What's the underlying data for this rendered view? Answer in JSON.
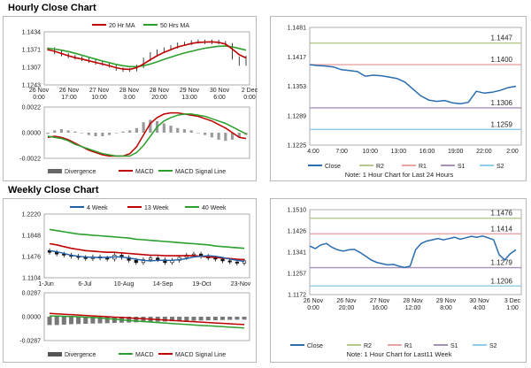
{
  "titles": {
    "hourly": "Hourly Close Chart",
    "weekly": "Weekly Close Chart"
  },
  "colors": {
    "ma_short": "#c00000",
    "ma_mid": "#c00000",
    "ma_long": "#2ca02c",
    "ma_4w": "#1f5fa8",
    "close_line": "#2a6db0",
    "macd": "#2ca02c",
    "signal": "#c00000",
    "divergence": "#777777",
    "r2": "#b5c98a",
    "r1": "#e8a3a3",
    "s1": "#a690b8",
    "s2": "#8fcdea"
  },
  "chart_data": [
    {
      "id": "hourly_price",
      "type": "line",
      "x_ticks": [
        "26 Nov\n0:00",
        "26 Nov\n17:00",
        "27 Nov\n10:00",
        "28 Nov\n3:00",
        "28 Nov\n20:00",
        "29 Nov\n13:00",
        "30 Nov\n6:00",
        "2 Dec\n0:00"
      ],
      "y_ticks": [
        "1.1434",
        "1.1371",
        "1.1307",
        "1.1243"
      ],
      "ylim": [
        1.1243,
        1.1434
      ],
      "legend": [
        "20 Hr MA",
        "50 Hrs MA"
      ],
      "close": [
        1.1372,
        1.136,
        1.1352,
        1.1345,
        1.134,
        1.1335,
        1.1328,
        1.1322,
        1.1318,
        1.1312,
        1.13,
        1.1296,
        1.1298,
        1.131,
        1.1335,
        1.1355,
        1.1365,
        1.1372,
        1.138,
        1.139,
        1.1392,
        1.1398,
        1.14,
        1.1396,
        1.14,
        1.1395,
        1.1388,
        1.134,
        1.1318,
        1.1342
      ],
      "series": [
        {
          "name": "20 Hr MA",
          "values": [
            1.137,
            1.1364,
            1.1356,
            1.1348,
            1.1341,
            1.1336,
            1.133,
            1.1324,
            1.1318,
            1.1312,
            1.1305,
            1.13,
            1.1299,
            1.1305,
            1.1318,
            1.1334,
            1.1348,
            1.136,
            1.137,
            1.138,
            1.1386,
            1.1392,
            1.1396,
            1.1397,
            1.1398,
            1.1396,
            1.139,
            1.1372,
            1.1352,
            1.134
          ]
        },
        {
          "name": "50 Hrs MA",
          "values": [
            1.1375,
            1.1372,
            1.1368,
            1.1363,
            1.1357,
            1.135,
            1.1343,
            1.1336,
            1.1329,
            1.1323,
            1.1317,
            1.1312,
            1.1309,
            1.1309,
            1.1312,
            1.1318,
            1.1326,
            1.1335,
            1.1343,
            1.1351,
            1.1358,
            1.1364,
            1.137,
            1.1375,
            1.1379,
            1.1382,
            1.1383,
            1.138,
            1.1374,
            1.1368
          ]
        }
      ]
    },
    {
      "id": "hourly_macd",
      "type": "bar",
      "y_ticks": [
        "0.0022",
        "0.0000",
        "-0.0022"
      ],
      "ylim": [
        -0.0022,
        0.0022
      ],
      "legend": [
        "Divergence",
        "MACD",
        "MACD Signal Line"
      ],
      "series": [
        {
          "name": "Divergence",
          "values": [
            -0.0001,
            0.0002,
            0.0003,
            0.0002,
            0.0001,
            0.0,
            -0.0002,
            -0.0003,
            -0.0003,
            -0.0002,
            0.0,
            0.0001,
            0.0002,
            0.0004,
            0.0009,
            0.0011,
            0.001,
            0.0008,
            0.0006,
            0.0004,
            0.0003,
            0.0002,
            0.0,
            -0.0002,
            -0.0004,
            -0.0006,
            -0.0007,
            -0.0006,
            -0.0004,
            -0.0002
          ]
        },
        {
          "name": "MACD",
          "values": [
            -0.0004,
            -0.0003,
            -0.0004,
            -0.0006,
            -0.0009,
            -0.0012,
            -0.0015,
            -0.0017,
            -0.0019,
            -0.002,
            -0.002,
            -0.002,
            -0.0018,
            -0.0012,
            -0.0002,
            0.0008,
            0.0013,
            0.0016,
            0.0017,
            0.0017,
            0.0016,
            0.0015,
            0.0014,
            0.0012,
            0.001,
            0.0007,
            0.0004,
            0.0,
            -0.0004,
            -0.0005
          ]
        },
        {
          "name": "MACD Signal Line",
          "values": [
            -0.0003,
            -0.0004,
            -0.0005,
            -0.0007,
            -0.001,
            -0.0012,
            -0.0014,
            -0.0016,
            -0.0018,
            -0.0019,
            -0.002,
            -0.002,
            -0.002,
            -0.0017,
            -0.0011,
            -0.0003,
            0.0005,
            0.001,
            0.0013,
            0.0015,
            0.0016,
            0.0016,
            0.0015,
            0.0014,
            0.0012,
            0.001,
            0.0008,
            0.0005,
            0.0002,
            -0.0001
          ]
        }
      ]
    },
    {
      "id": "hourly_pivot",
      "type": "line",
      "x_ticks": [
        "4:00",
        "7:00",
        "10:00",
        "13:00",
        "16:00",
        "19:00",
        "22:00",
        "2:00"
      ],
      "y_ticks": [
        "1.1481",
        "1.1417",
        "1.1353",
        "1.1289",
        "1.1225"
      ],
      "ylim": [
        1.1225,
        1.1481
      ],
      "levels": [
        {
          "name": "R2",
          "value": 1.1447,
          "label": "1.1447"
        },
        {
          "name": "R1",
          "value": 1.14,
          "label": "1.1400"
        },
        {
          "name": "S1",
          "value": 1.1306,
          "label": "1.1306"
        },
        {
          "name": "S2",
          "value": 1.1259,
          "label": "1.1259"
        }
      ],
      "close": [
        1.14,
        1.1398,
        1.1397,
        1.1395,
        1.1389,
        1.1387,
        1.1385,
        1.1375,
        1.1377,
        1.1376,
        1.1373,
        1.137,
        1.1362,
        1.1347,
        1.1332,
        1.1323,
        1.132,
        1.1322,
        1.1317,
        1.1315,
        1.1318,
        1.1342,
        1.1338,
        1.134,
        1.1344,
        1.135,
        1.1353
      ],
      "legend": [
        "Close",
        "R2",
        "R1",
        "S1",
        "S2"
      ],
      "note": "Note: 1 Hour Chart for Last 24 Hours"
    },
    {
      "id": "weekly_price",
      "type": "line",
      "x_ticks": [
        "1-Jun",
        "6-Jul",
        "10-Aug",
        "14-Sep",
        "19-Oct",
        "23-Nov"
      ],
      "y_ticks": [
        "1.2220",
        "1.1848",
        "1.1476",
        "1.1104"
      ],
      "ylim": [
        1.1104,
        1.222
      ],
      "legend": [
        "4 Week",
        "13 Week",
        "40 Week"
      ],
      "close": [
        1.155,
        1.152,
        1.15,
        1.148,
        1.146,
        1.144,
        1.147,
        1.145,
        1.143,
        1.15,
        1.146,
        1.141,
        1.137,
        1.142,
        1.145,
        1.142,
        1.137,
        1.141,
        1.146,
        1.15,
        1.152,
        1.148,
        1.145,
        1.143,
        1.14,
        1.138,
        1.136,
        1.14
      ],
      "series": [
        {
          "name": "4 Week",
          "values": [
            1.158,
            1.156,
            1.153,
            1.15,
            1.148,
            1.147,
            1.146,
            1.146,
            1.146,
            1.147,
            1.147,
            1.145,
            1.143,
            1.141,
            1.14,
            1.141,
            1.141,
            1.141,
            1.142,
            1.144,
            1.147,
            1.148,
            1.149,
            1.148,
            1.146,
            1.143,
            1.141,
            1.139
          ]
        },
        {
          "name": "13 Week",
          "values": [
            1.17,
            1.168,
            1.165,
            1.162,
            1.16,
            1.158,
            1.157,
            1.156,
            1.155,
            1.155,
            1.154,
            1.153,
            1.152,
            1.151,
            1.15,
            1.15,
            1.149,
            1.149,
            1.149,
            1.149,
            1.149,
            1.148,
            1.147,
            1.146,
            1.145,
            1.144,
            1.143,
            1.142
          ]
        },
        {
          "name": "40 Week",
          "values": [
            1.195,
            1.193,
            1.191,
            1.189,
            1.187,
            1.186,
            1.185,
            1.184,
            1.183,
            1.182,
            1.181,
            1.18,
            1.178,
            1.177,
            1.176,
            1.175,
            1.174,
            1.173,
            1.172,
            1.171,
            1.17,
            1.169,
            1.168,
            1.166,
            1.165,
            1.164,
            1.163,
            1.162
          ]
        }
      ]
    },
    {
      "id": "weekly_macd",
      "type": "bar",
      "y_ticks": [
        "0.0287",
        "0.0000",
        "-0.0287"
      ],
      "ylim": [
        -0.0287,
        0.0287
      ],
      "legend": [
        "Divergence",
        "MACD",
        "MACD Signal Line"
      ],
      "series": [
        {
          "name": "Divergence",
          "values": [
            -0.01,
            -0.01,
            -0.0095,
            -0.009,
            -0.0088,
            -0.0085,
            -0.0082,
            -0.008,
            -0.0078,
            -0.0075,
            -0.0072,
            -0.007,
            -0.0068,
            -0.0065,
            -0.0062,
            -0.006,
            -0.0058,
            -0.0055,
            -0.0052,
            -0.005,
            -0.0048,
            -0.0046,
            -0.0044,
            -0.0042,
            -0.004,
            -0.0038,
            -0.0036,
            -0.0035
          ]
        },
        {
          "name": "MACD",
          "values": [
            0.001,
            0.0008,
            0.0005,
            0.0002,
            0.0,
            -0.0005,
            -0.001,
            -0.0015,
            -0.0022,
            -0.003,
            -0.0038,
            -0.0045,
            -0.0052,
            -0.0058,
            -0.0064,
            -0.007,
            -0.0076,
            -0.0082,
            -0.0088,
            -0.0094,
            -0.01,
            -0.0105,
            -0.011,
            -0.0115,
            -0.012,
            -0.0125,
            -0.013,
            -0.0135
          ]
        },
        {
          "name": "MACD Signal Line",
          "values": [
            0.004,
            0.0035,
            0.003,
            0.0025,
            0.002,
            0.0015,
            0.001,
            0.0005,
            0.0,
            -0.0005,
            -0.001,
            -0.0015,
            -0.002,
            -0.0025,
            -0.003,
            -0.0035,
            -0.004,
            -0.0045,
            -0.005,
            -0.0055,
            -0.006,
            -0.0065,
            -0.007,
            -0.0075,
            -0.008,
            -0.0085,
            -0.009,
            -0.0095
          ]
        }
      ]
    },
    {
      "id": "weekly_pivot",
      "type": "line",
      "x_ticks": [
        "26 Nov\n0:00",
        "26 Nov\n20:00",
        "27 Nov\n16:00",
        "28 Nov\n12:00",
        "29 Nov\n8:00",
        "30 Nov\n4:00",
        "3 Dec\n1:00"
      ],
      "y_ticks": [
        "1.1510",
        "1.1426",
        "1.1341",
        "1.1257",
        "1.1172"
      ],
      "ylim": [
        1.1172,
        1.151
      ],
      "levels": [
        {
          "name": "R2",
          "value": 1.1476,
          "label": "1.1476"
        },
        {
          "name": "R1",
          "value": 1.1414,
          "label": "1.1414"
        },
        {
          "name": "S1",
          "value": 1.1279,
          "label": "1.1279"
        },
        {
          "name": "S2",
          "value": 1.1206,
          "label": "1.1206"
        }
      ],
      "close": [
        1.1365,
        1.1355,
        1.137,
        1.1375,
        1.136,
        1.135,
        1.1345,
        1.135,
        1.1352,
        1.134,
        1.1325,
        1.131,
        1.13,
        1.1295,
        1.129,
        1.1292,
        1.1285,
        1.128,
        1.1285,
        1.135,
        1.1375,
        1.1385,
        1.139,
        1.1395,
        1.139,
        1.1395,
        1.14,
        1.1392,
        1.1398,
        1.1404,
        1.14,
        1.1405,
        1.1398,
        1.139,
        1.133,
        1.131,
        1.1335,
        1.135
      ],
      "legend": [
        "Close",
        "R2",
        "R1",
        "S1",
        "S2"
      ],
      "note": "Note: 1 Hour Chart for Last11 Week"
    }
  ]
}
